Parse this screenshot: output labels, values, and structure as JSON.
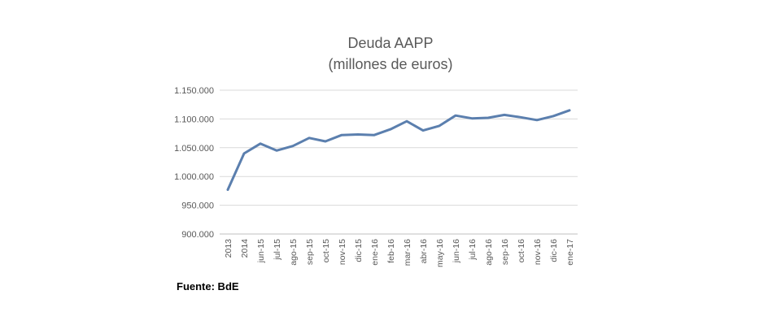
{
  "chart_data": {
    "type": "line",
    "title": "Deuda AAPP",
    "subtitle": "(millones de euros)",
    "source": "Fuente: BdE",
    "categories": [
      "2013",
      "2014",
      "jun-15",
      "jul-15",
      "ago-15",
      "sep-15",
      "oct-15",
      "nov-15",
      "dic-15",
      "ene-16",
      "feb-16",
      "mar-16",
      "abr-16",
      "may-16",
      "jun-16",
      "jul-16",
      "ago-16",
      "sep-16",
      "oct-16",
      "nov-16",
      "dic-16",
      "ene-17"
    ],
    "series": [
      {
        "values": [
          977000,
          1040000,
          1057000,
          1045000,
          1053000,
          1067000,
          1061000,
          1072000,
          1073000,
          1072000,
          1082000,
          1096000,
          1080000,
          1088000,
          1106000,
          1101000,
          1102000,
          1107000,
          1103000,
          1098000,
          1105000,
          1115000
        ],
        "color": "#5b7fae"
      }
    ],
    "yticks": [
      "900.000",
      "950.000",
      "1.000.000",
      "1.050.000",
      "1.100.000",
      "1.150.000"
    ],
    "ylim": [
      900000,
      1150000
    ],
    "grid": true,
    "legend": "none"
  }
}
